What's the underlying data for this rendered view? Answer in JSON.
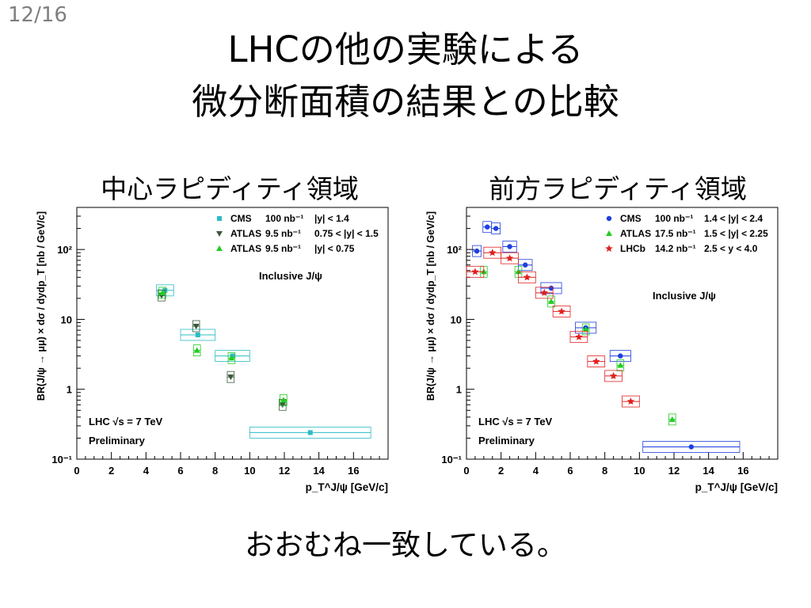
{
  "page_number": "12/16",
  "title_line1": "LHCの他の実験による",
  "title_line2": "微分断面積の結果との比較",
  "subtitle_left": "中心ラピディティ領域",
  "subtitle_right": "前方ラピディティ領域",
  "footer": "おおむね一致している。",
  "chart_data": [
    {
      "type": "scatter",
      "ylabel": "BR(J/ψ → μμ) × dσ / dydp_T  [nb / GeV/c]",
      "xlabel": "p_T^J/ψ [GeV/c]",
      "xlim": [
        0,
        18
      ],
      "ylim": [
        0.1,
        400
      ],
      "y_scale": "log",
      "x_ticks": [
        "0",
        "2",
        "4",
        "6",
        "8",
        "10",
        "12",
        "14",
        "16"
      ],
      "y_ticks": [
        {
          "value": 0.1,
          "label": "10⁻¹"
        },
        {
          "value": 1,
          "label": "1"
        },
        {
          "value": 10,
          "label": "10"
        },
        {
          "value": 100,
          "label": "10²"
        }
      ],
      "text_inclusive": "Inclusive J/ψ",
      "text_lhc": "LHC   √s = 7 TeV",
      "text_prelim": "Preliminary",
      "legend_position": "top-right",
      "series": [
        {
          "name": "CMS",
          "lumi": "100 nb⁻¹",
          "range": "|y| < 1.4",
          "marker": "square",
          "color": "#2bbcc4",
          "x": [
            5.1,
            7.0,
            9.0,
            13.5
          ],
          "y": [
            26,
            6,
            3,
            0.24
          ],
          "xerr": [
            0.5,
            1.0,
            1.0,
            3.5
          ]
        },
        {
          "name": "ATLAS",
          "lumi": "9.5  nb⁻¹",
          "range": "0.75 < |y| < 1.5",
          "marker": "triangle-down",
          "color": "#3a5a3a",
          "x": [
            4.9,
            6.9,
            8.9,
            11.9
          ],
          "y": [
            22,
            8,
            1.5,
            0.6
          ],
          "xerr": [
            0.2,
            0.2,
            0.2,
            0.2
          ]
        },
        {
          "name": "ATLAS",
          "lumi": "9.5  nb⁻¹",
          "range": "|y| < 0.75",
          "marker": "triangle-up",
          "color": "#22cc22",
          "x": [
            4.95,
            6.95,
            8.95,
            11.95
          ],
          "y": [
            24,
            3.6,
            2.8,
            0.7
          ],
          "xerr": [
            0.2,
            0.2,
            0.2,
            0.2
          ]
        }
      ]
    },
    {
      "type": "scatter",
      "ylabel": "BR(J/ψ → μμ) × dσ / dydp_T  [nb / GeV/c]",
      "xlabel": "p_T^J/ψ [GeV/c]",
      "xlim": [
        0,
        18
      ],
      "ylim": [
        0.1,
        400
      ],
      "y_scale": "log",
      "x_ticks": [
        "0",
        "2",
        "4",
        "6",
        "8",
        "10",
        "12",
        "14",
        "16"
      ],
      "y_ticks": [
        {
          "value": 0.1,
          "label": "10⁻¹"
        },
        {
          "value": 1,
          "label": "1"
        },
        {
          "value": 10,
          "label": "10"
        },
        {
          "value": 100,
          "label": "10²"
        }
      ],
      "text_inclusive": "Inclusive J/ψ",
      "text_lhc": "LHC   √s = 7 TeV",
      "text_prelim": "Preliminary",
      "legend_position": "top-right",
      "series": [
        {
          "name": "CMS",
          "lumi": "100 nb⁻¹",
          "range": "1.4 < |y| < 2.4",
          "marker": "circle",
          "color": "#1f3fe0",
          "x": [
            0.6,
            1.2,
            1.7,
            2.5,
            3.4,
            4.9,
            6.9,
            8.9,
            13.0
          ],
          "y": [
            95,
            210,
            200,
            110,
            60,
            28,
            7.6,
            3,
            0.15
          ],
          "xerr": [
            0.25,
            0.25,
            0.25,
            0.4,
            0.4,
            0.6,
            0.6,
            0.6,
            2.8
          ]
        },
        {
          "name": "ATLAS",
          "lumi": "17.5 nb⁻¹",
          "range": "1.5 < |y| < 2.25",
          "marker": "triangle-up",
          "color": "#22cc22",
          "x": [
            1.0,
            3.0,
            4.9,
            6.9,
            8.9,
            11.9
          ],
          "y": [
            48,
            48,
            18,
            7.2,
            2.2,
            0.37
          ],
          "xerr": [
            0.2,
            0.2,
            0.2,
            0.2,
            0.2,
            0.2
          ]
        },
        {
          "name": "LHCb",
          "lumi": "14.2 nb⁻¹",
          "range": "2.5 < y < 4.0",
          "marker": "star",
          "color": "#e02020",
          "x": [
            0.5,
            1.5,
            2.5,
            3.5,
            4.5,
            5.5,
            6.5,
            7.5,
            8.5,
            9.5
          ],
          "y": [
            48,
            90,
            75,
            40,
            24,
            13,
            5.6,
            2.5,
            1.55,
            0.67
          ],
          "xerr": [
            0.5,
            0.5,
            0.5,
            0.5,
            0.5,
            0.5,
            0.5,
            0.5,
            0.5,
            0.5
          ]
        }
      ]
    }
  ]
}
